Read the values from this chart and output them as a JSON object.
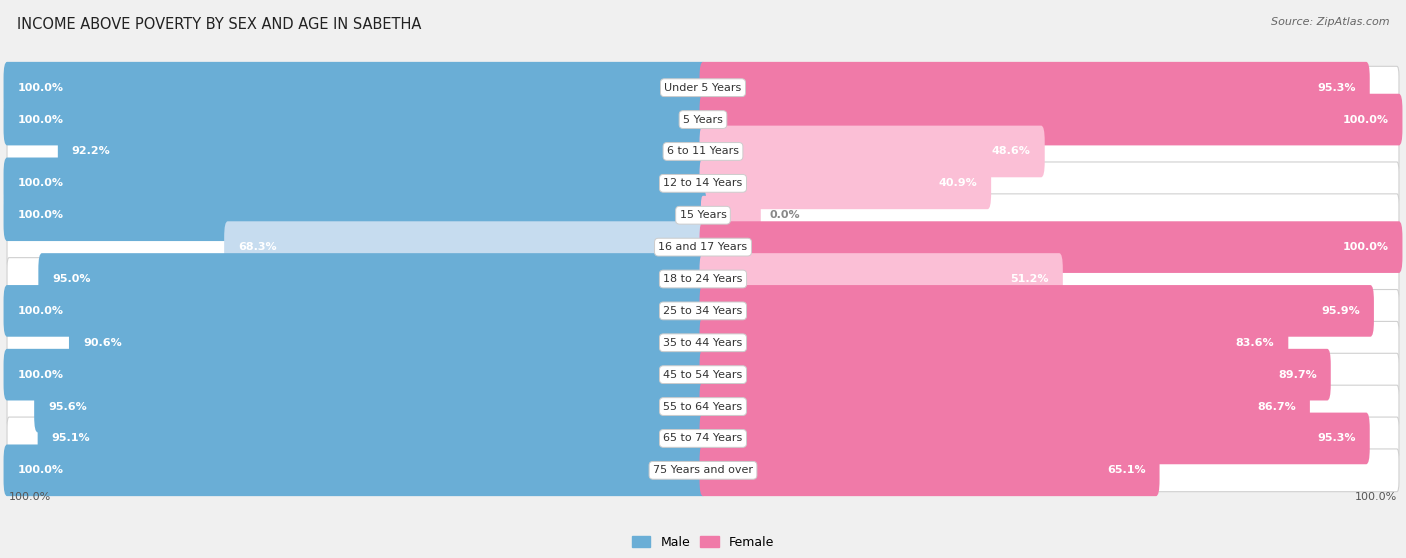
{
  "title": "INCOME ABOVE POVERTY BY SEX AND AGE IN SABETHA",
  "source": "Source: ZipAtlas.com",
  "categories": [
    "Under 5 Years",
    "5 Years",
    "6 to 11 Years",
    "12 to 14 Years",
    "15 Years",
    "16 and 17 Years",
    "18 to 24 Years",
    "25 to 34 Years",
    "35 to 44 Years",
    "45 to 54 Years",
    "55 to 64 Years",
    "65 to 74 Years",
    "75 Years and over"
  ],
  "male": [
    100.0,
    100.0,
    92.2,
    100.0,
    100.0,
    68.3,
    95.0,
    100.0,
    90.6,
    100.0,
    95.6,
    95.1,
    100.0
  ],
  "female": [
    95.3,
    100.0,
    48.6,
    40.9,
    0.0,
    100.0,
    51.2,
    95.9,
    83.6,
    89.7,
    86.7,
    95.3,
    65.1
  ],
  "male_color": "#6aaed6",
  "female_color": "#f07aa8",
  "male_color_light": "#c6dcef",
  "female_color_light": "#fbbfd6",
  "bg_color": "#f0f0f0",
  "bar_bg_color": "#ffffff",
  "label_fontsize": 8.0,
  "title_fontsize": 10.5,
  "legend_fontsize": 9,
  "axis_label_fontsize": 8,
  "max_val": 100.0,
  "bottom_labels": [
    "100.0%",
    "100.0%"
  ]
}
